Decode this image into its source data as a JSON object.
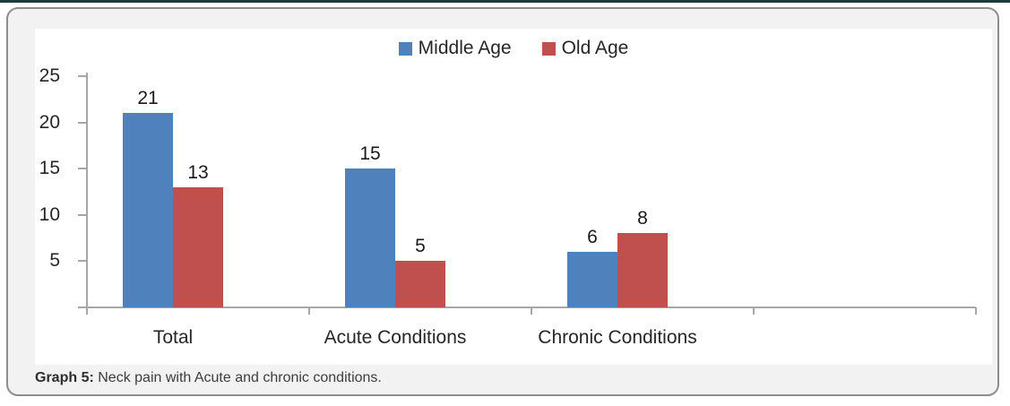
{
  "figure": {
    "caption_prefix": "Graph 5:",
    "caption_text": " Neck pain with Acute and chronic conditions."
  },
  "colors": {
    "top_rule": "#1d3a3a",
    "frame_border": "#8e8e8e",
    "frame_background": "#f2f2f2",
    "chart_background": "#ffffff",
    "axis": "#a6a6a6",
    "text": "#262626"
  },
  "chart_data": {
    "type": "bar",
    "title": "",
    "categories": [
      "Total",
      "Acute Conditions",
      "Chronic Conditions"
    ],
    "series": [
      {
        "name": "Middle Age",
        "color": "#4f81bd",
        "values": [
          21,
          15,
          6
        ]
      },
      {
        "name": "Old Age",
        "color": "#c0504d",
        "values": [
          13,
          5,
          8
        ]
      }
    ],
    "xlabel": "",
    "ylabel": "",
    "ylim": [
      0,
      25
    ],
    "yticks": [
      5,
      10,
      15,
      20,
      25
    ],
    "grid": false,
    "legend_position": "top-center",
    "data_labels": true,
    "extra_empty_category_slots": 1
  }
}
